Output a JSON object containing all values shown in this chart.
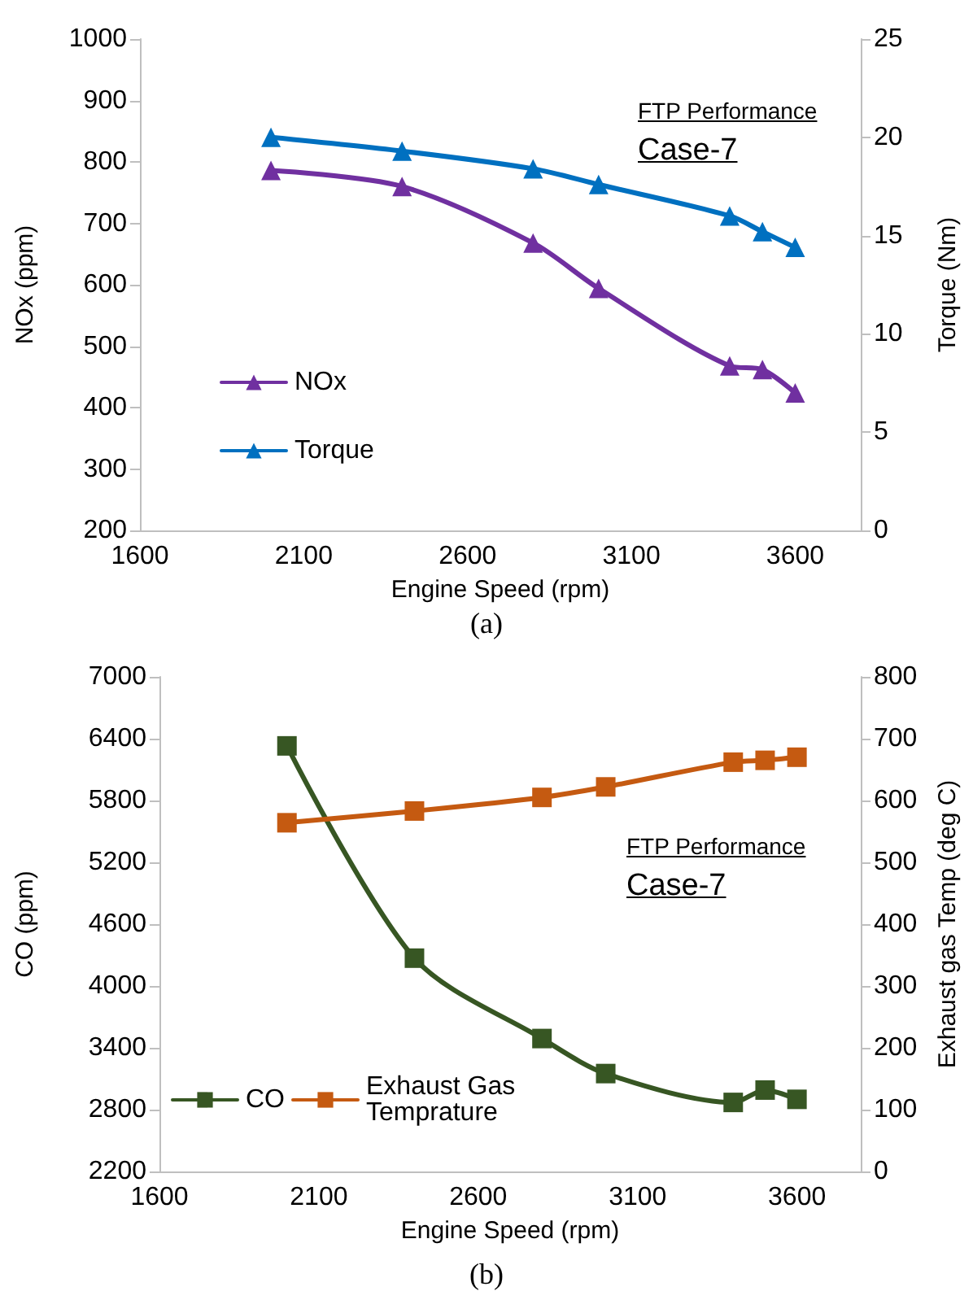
{
  "chart_data": [
    {
      "type": "line",
      "xlabel": "Engine Speed (rpm)",
      "ylabel": "NOx (ppm)",
      "y2label": "Torque (Nm)",
      "annotations": [
        "FTP Performance",
        "Case-7",
        "(a)"
      ],
      "x": [
        2000,
        2400,
        2800,
        3000,
        3400,
        3500,
        3600
      ],
      "series": [
        {
          "name": "NOx",
          "color": "#7030a0",
          "values": [
            786,
            760,
            668,
            594,
            468,
            462,
            424
          ]
        },
        {
          "name": "Torque",
          "color": "#0070c0",
          "axis": "y2",
          "values": [
            20.0,
            19.3,
            18.4,
            17.6,
            16.0,
            15.2,
            14.4
          ]
        }
      ],
      "xlim": [
        1600,
        3800
      ],
      "xticks": [
        1600,
        2100,
        2600,
        3100,
        3600
      ],
      "ylim": [
        200,
        1000
      ],
      "yticks": [
        200,
        300,
        400,
        500,
        600,
        700,
        800,
        900,
        1000
      ],
      "y2lim": [
        0,
        25
      ],
      "y2ticks": [
        0,
        5,
        10,
        15,
        20,
        25
      ],
      "grid": false,
      "legend": "left",
      "marker": "triangle",
      "line_style": "solid"
    },
    {
      "type": "line",
      "xlabel": "Engine Speed (rpm)",
      "ylabel": "CO (ppm)",
      "y2label": "Exhaust gas Temp (deg C)",
      "annotations": [
        "FTP Performance",
        "Case-7",
        "(b)"
      ],
      "x": [
        2000,
        2400,
        2800,
        3000,
        3400,
        3500,
        3600
      ],
      "series": [
        {
          "name": "CO",
          "color": "#375623",
          "values": [
            6330,
            4270,
            3490,
            3150,
            2870,
            2990,
            2900
          ]
        },
        {
          "name": "Exhaust Gas Temprature",
          "color": "#c55a11",
          "axis": "y2",
          "values": [
            564,
            583,
            605,
            622,
            662,
            665,
            670
          ]
        }
      ],
      "xlim": [
        1600,
        3800
      ],
      "xticks": [
        1600,
        2100,
        2600,
        3100,
        3600
      ],
      "ylim": [
        2200,
        7000
      ],
      "yticks": [
        2200,
        2800,
        3400,
        4000,
        4600,
        5200,
        5800,
        6400,
        7000
      ],
      "y2lim": [
        0,
        800
      ],
      "y2ticks": [
        0,
        100,
        200,
        300,
        400,
        500,
        600,
        700,
        800
      ],
      "grid": false,
      "legend": "bottom left",
      "marker": "square",
      "line_style": "solid"
    }
  ]
}
